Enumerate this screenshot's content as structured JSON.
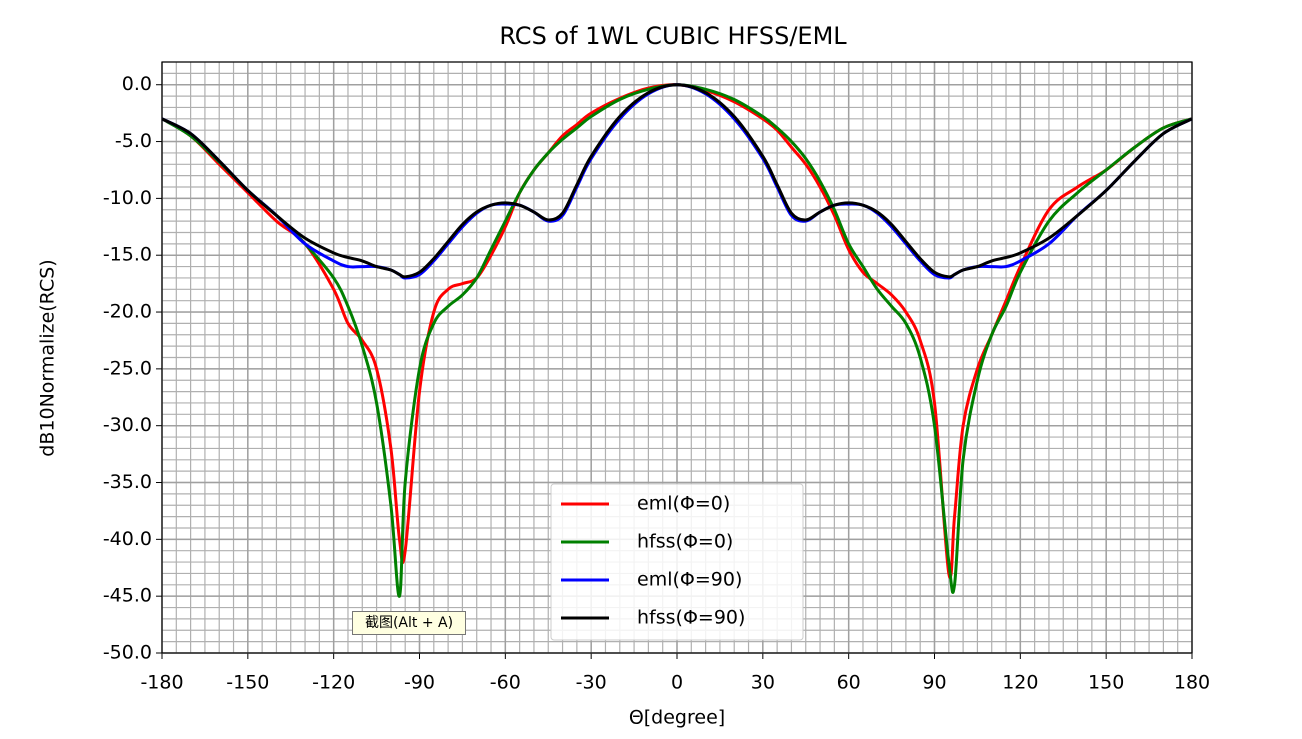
{
  "chart_data": {
    "type": "line",
    "title": "RCS of 1WL CUBIC  HFSS/EML",
    "x_label": "Θ[degree]",
    "y_label": "dB10Normalize(RCS)",
    "x": [
      -180,
      -170,
      -160,
      -150,
      -140,
      -130,
      -120,
      -115,
      -110,
      -105,
      -100,
      -97,
      -95,
      -90,
      -85,
      -80,
      -75,
      -70,
      -65,
      -60,
      -55,
      -50,
      -45,
      -40,
      -35,
      -30,
      -20,
      -10,
      0,
      10,
      20,
      30,
      35,
      40,
      45,
      50,
      55,
      60,
      65,
      70,
      75,
      80,
      85,
      90,
      95,
      97,
      100,
      105,
      110,
      115,
      120,
      130,
      140,
      150,
      160,
      170,
      180
    ],
    "series": [
      {
        "name": "eml(Φ=0)",
        "color": "#ff0000",
        "values": [
          -3,
          -4.5,
          -7,
          -9.5,
          -12,
          -14,
          -18,
          -21,
          -22.5,
          -25,
          -32,
          -40,
          -41,
          -27,
          -20,
          -18,
          -17.5,
          -17,
          -15,
          -12.5,
          -9.5,
          -7.5,
          -6,
          -4.5,
          -3.5,
          -2.5,
          -1.2,
          -0.3,
          0,
          -0.5,
          -1.5,
          -3,
          -4,
          -5.5,
          -7,
          -9,
          -11.5,
          -14.5,
          -16.5,
          -17.5,
          -18.5,
          -20,
          -22.5,
          -28,
          -43,
          -38,
          -30,
          -25,
          -22,
          -19,
          -16,
          -11,
          -9,
          -7.5,
          -5.5,
          -3.8,
          -3
        ]
      },
      {
        "name": "hfss(Φ=0)",
        "color": "#008000",
        "values": [
          -3,
          -4.5,
          -6.8,
          -9.3,
          -11.5,
          -14,
          -17,
          -19.5,
          -23,
          -28,
          -37,
          -45,
          -35,
          -25,
          -21,
          -19.5,
          -18.5,
          -17,
          -14.5,
          -12,
          -9.5,
          -7.5,
          -6,
          -4.8,
          -3.8,
          -2.8,
          -1.3,
          -0.4,
          0,
          -0.4,
          -1.3,
          -2.8,
          -3.8,
          -5,
          -6.5,
          -8.5,
          -11,
          -14,
          -16,
          -18,
          -19.5,
          -21,
          -24,
          -30,
          -42,
          -44,
          -33,
          -26,
          -22,
          -19.5,
          -16.5,
          -12,
          -9.5,
          -7.5,
          -5.5,
          -3.8,
          -3
        ]
      },
      {
        "name": "eml(Φ=90)",
        "color": "#0000ff",
        "values": [
          -3,
          -4.3,
          -6.7,
          -9.3,
          -11.5,
          -14,
          -15.5,
          -16,
          -16,
          -16,
          -16.3,
          -16.7,
          -17,
          -16.7,
          -15.5,
          -14,
          -12.5,
          -11.3,
          -10.6,
          -10.5,
          -10.6,
          -11.2,
          -12,
          -11.5,
          -9,
          -6.5,
          -3,
          -0.8,
          0,
          -0.8,
          -3,
          -6.5,
          -9,
          -11.5,
          -12,
          -11.2,
          -10.6,
          -10.5,
          -10.6,
          -11.3,
          -12.5,
          -14,
          -15.5,
          -16.7,
          -17,
          -16.7,
          -16.3,
          -16,
          -16,
          -16,
          -15.5,
          -14,
          -11.5,
          -9.3,
          -6.7,
          -4.3,
          -3
        ]
      },
      {
        "name": "hfss(Φ=90)",
        "color": "#000000",
        "values": [
          -3,
          -4.3,
          -6.7,
          -9.3,
          -11.5,
          -13.5,
          -14.8,
          -15.2,
          -15.5,
          -16,
          -16.3,
          -16.7,
          -16.9,
          -16.5,
          -15.3,
          -13.8,
          -12.3,
          -11.2,
          -10.6,
          -10.4,
          -10.6,
          -11.2,
          -11.9,
          -11.3,
          -8.8,
          -6.3,
          -2.8,
          -0.7,
          0,
          -0.7,
          -2.8,
          -6.3,
          -8.8,
          -11.3,
          -11.9,
          -11.2,
          -10.6,
          -10.4,
          -10.6,
          -11.2,
          -12.3,
          -13.8,
          -15.3,
          -16.5,
          -16.9,
          -16.7,
          -16.3,
          -16,
          -15.5,
          -15.2,
          -14.8,
          -13.5,
          -11.5,
          -9.3,
          -6.7,
          -4.3,
          -3
        ]
      }
    ],
    "xlim": [
      -180,
      180
    ],
    "xticks": [
      -180,
      -150,
      -120,
      -90,
      -60,
      -30,
      0,
      30,
      60,
      90,
      120,
      150,
      180
    ],
    "ylim": [
      -50,
      2
    ],
    "yticks": [
      {
        "value": -50,
        "label": "-50.0"
      },
      {
        "value": -45,
        "label": "-45.0"
      },
      {
        "value": -40,
        "label": "-40.0"
      },
      {
        "value": -35,
        "label": "-35.0"
      },
      {
        "value": -30,
        "label": "-30.0"
      },
      {
        "value": -25,
        "label": "-25.0"
      },
      {
        "value": -20,
        "label": "-20.0"
      },
      {
        "value": -15,
        "label": "-15.0"
      },
      {
        "value": -10,
        "label": "-10.0"
      },
      {
        "value": -5,
        "label": "-5.0"
      },
      {
        "value": 0,
        "label": "0.0"
      }
    ],
    "grid": true,
    "minor_grid": {
      "x": 5,
      "y": 1
    },
    "legend": "lower center",
    "tooltip": "截图(Alt + A)"
  }
}
